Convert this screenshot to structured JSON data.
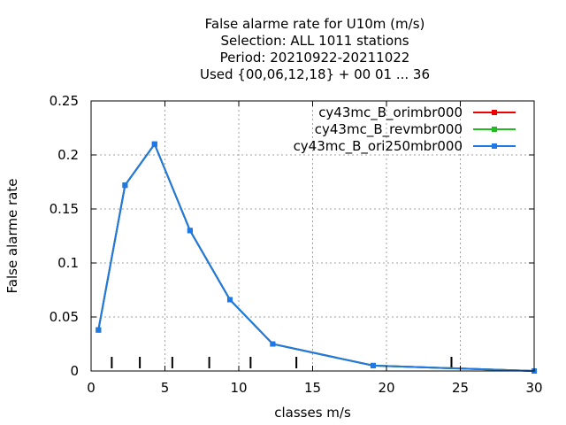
{
  "chart_data": {
    "type": "line",
    "title_lines": [
      "False alarme rate  for U10m (m/s)",
      "Selection: ALL   1011 stations",
      "Period: 20210922-20211022",
      "Used {00,06,12,18} + 00 01 ... 36"
    ],
    "xlabel": "classes m/s",
    "ylabel": "False alarme rate",
    "xlim": [
      0,
      30
    ],
    "ylim": [
      0,
      0.25
    ],
    "x_ticks": [
      "0",
      "5",
      "10",
      "15",
      "20",
      "25",
      "30"
    ],
    "y_ticks": [
      "0",
      "0.05",
      "0.1",
      "0.15",
      "0.2",
      "0.25"
    ],
    "grid": true,
    "legend_position": "top-right",
    "class_markers": [
      1.4,
      3.3,
      5.5,
      8.0,
      10.8,
      13.9,
      24.4
    ],
    "series": [
      {
        "name": "cy43mc_B_orimbr000",
        "color": "#ee0000",
        "x": [
          0.5,
          2.3,
          4.3,
          6.7,
          9.4,
          12.3,
          19.1,
          30.0
        ],
        "y": [
          0.038,
          0.172,
          0.21,
          0.13,
          0.066,
          0.025,
          0.005,
          0.0
        ]
      },
      {
        "name": "cy43mc_B_revmbr000",
        "color": "#22bb22",
        "x": [
          0.5,
          2.3,
          4.3,
          6.7,
          9.4,
          12.3,
          19.1,
          30.0
        ],
        "y": [
          0.038,
          0.172,
          0.21,
          0.13,
          0.066,
          0.025,
          0.005,
          0.0
        ]
      },
      {
        "name": "cy43mc_B_ori250mbr000",
        "color": "#1e78e6",
        "x": [
          0.5,
          2.3,
          4.3,
          6.7,
          9.4,
          12.3,
          19.1,
          30.0
        ],
        "y": [
          0.038,
          0.172,
          0.21,
          0.13,
          0.066,
          0.025,
          0.005,
          0.0
        ]
      }
    ]
  }
}
